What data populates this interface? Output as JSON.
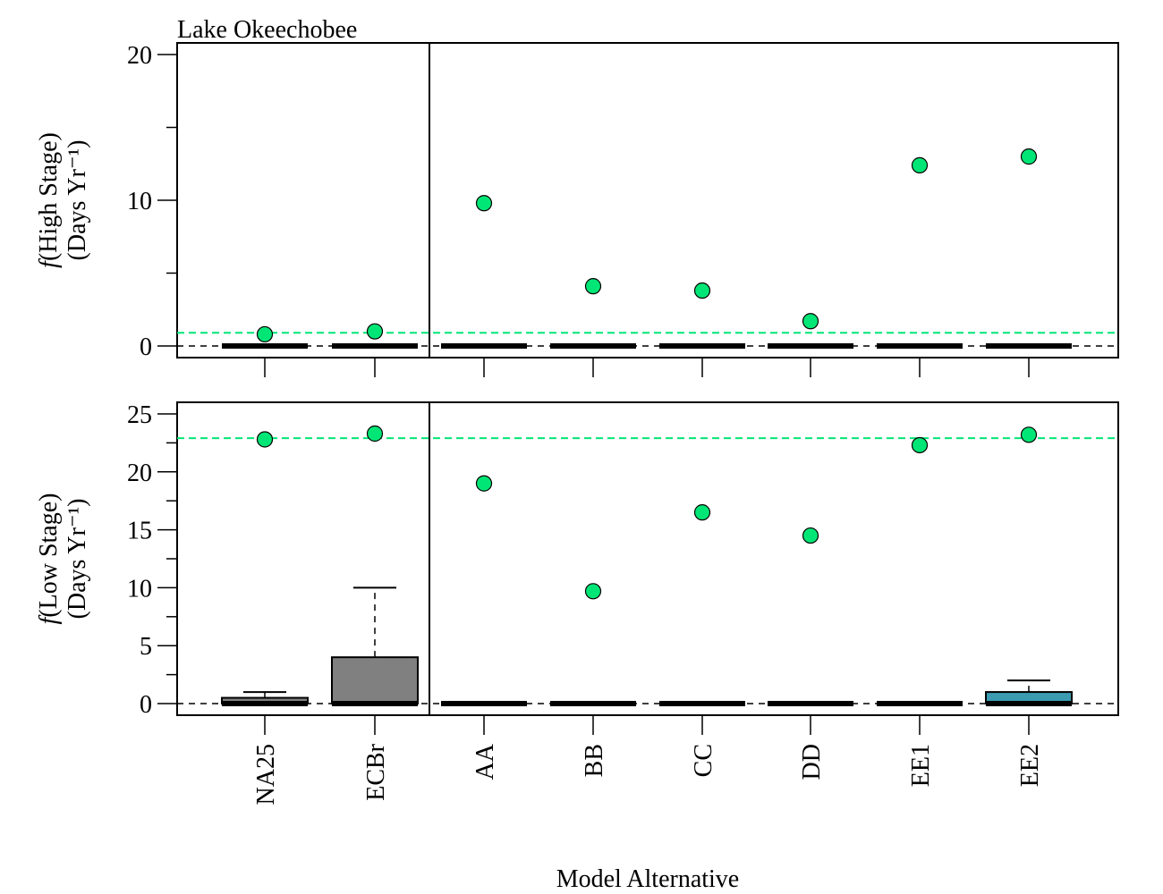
{
  "colors": {
    "mean_point": "#00e676",
    "ref_line": "#00e676",
    "box_gray": "#808080",
    "box_teal": "#3a9bb1"
  },
  "chart_data": [
    {
      "type": "box",
      "title": "Lake Okeechobee",
      "ylabel_main": "f(High Stage)",
      "ylabel_unit": "(Days Yr⁻¹)",
      "ylim": [
        -0.8,
        20.8
      ],
      "yticks": [
        0,
        10,
        20
      ],
      "yminor": [
        5,
        15
      ],
      "categories": [
        "NA25",
        "ECBr",
        "AA",
        "BB",
        "CC",
        "DD",
        "EE1",
        "EE2"
      ],
      "means": [
        0.8,
        1.0,
        9.8,
        4.1,
        3.8,
        1.7,
        12.4,
        13.0
      ],
      "boxes": [
        {
          "q1": 0,
          "median": 0,
          "q3": 0,
          "whisker_high": 0
        },
        {
          "q1": 0,
          "median": 0,
          "q3": 0,
          "whisker_high": 0
        },
        {
          "q1": 0,
          "median": 0,
          "q3": 0,
          "whisker_high": 0
        },
        {
          "q1": 0,
          "median": 0,
          "q3": 0,
          "whisker_high": 0
        },
        {
          "q1": 0,
          "median": 0,
          "q3": 0,
          "whisker_high": 0
        },
        {
          "q1": 0,
          "median": 0,
          "q3": 0,
          "whisker_high": 0
        },
        {
          "q1": 0,
          "median": 0,
          "q3": 0,
          "whisker_high": 0
        },
        {
          "q1": 0,
          "median": 0,
          "q3": 0,
          "whisker_high": 0
        }
      ],
      "reference_line": 0.9,
      "zero_line": 0
    },
    {
      "type": "box",
      "ylabel_main": "f(Low Stage)",
      "ylabel_unit": "(Days Yr⁻¹)",
      "ylim": [
        -1.0,
        26.0
      ],
      "yticks": [
        0,
        5,
        10,
        15,
        20,
        25
      ],
      "yminor": [
        2.5,
        7.5,
        12.5,
        17.5,
        22.5
      ],
      "categories": [
        "NA25",
        "ECBr",
        "AA",
        "BB",
        "CC",
        "DD",
        "EE1",
        "EE2"
      ],
      "means": [
        22.8,
        23.3,
        19.0,
        9.7,
        16.5,
        14.5,
        22.3,
        23.2
      ],
      "boxes": [
        {
          "q1": 0,
          "median": 0,
          "q3": 0.5,
          "whisker_high": 1
        },
        {
          "q1": 0,
          "median": 0,
          "q3": 4,
          "whisker_high": 10
        },
        {
          "q1": 0,
          "median": 0,
          "q3": 0,
          "whisker_high": 0
        },
        {
          "q1": 0,
          "median": 0,
          "q3": 0,
          "whisker_high": 0
        },
        {
          "q1": 0,
          "median": 0,
          "q3": 0,
          "whisker_high": 0
        },
        {
          "q1": 0,
          "median": 0,
          "q3": 0,
          "whisker_high": 0
        },
        {
          "q1": 0,
          "median": 0,
          "q3": 0,
          "whisker_high": 0
        },
        {
          "q1": 0,
          "median": 0,
          "q3": 1,
          "whisker_high": 2
        }
      ],
      "box_fill": [
        "gray",
        "gray",
        "none",
        "none",
        "none",
        "none",
        "none",
        "teal"
      ],
      "reference_line": 22.9,
      "zero_line": 0
    }
  ],
  "xlabel": "Model Alternative"
}
